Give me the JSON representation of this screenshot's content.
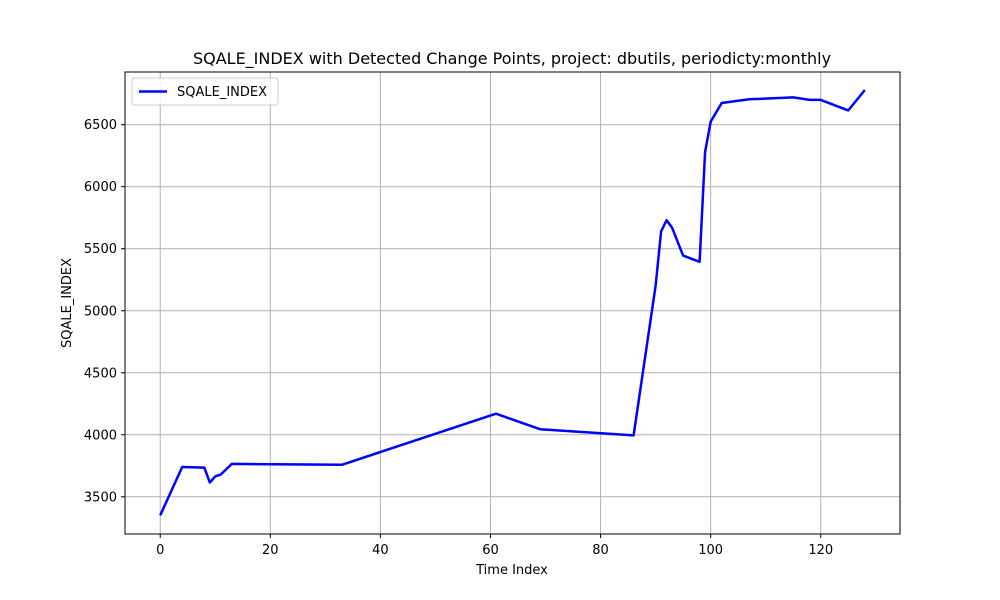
{
  "chart_data": {
    "type": "line",
    "title": "SQALE_INDEX with Detected Change Points, project: dbutils, periodicty:monthly",
    "xlabel": "Time Index",
    "ylabel": "SQALE_INDEX",
    "xlim": [
      -6.4,
      134.4
    ],
    "ylim": [
      3200,
      6925
    ],
    "xticks": [
      0,
      20,
      40,
      60,
      80,
      100,
      120
    ],
    "yticks": [
      3500,
      4000,
      4500,
      5000,
      5500,
      6000,
      6500
    ],
    "grid": true,
    "legend_position": "top-left",
    "colors": {
      "series": "#0000ff",
      "grid": "#b0b0b0",
      "axes": "#000000"
    },
    "series": [
      {
        "name": "SQALE_INDEX",
        "x": [
          0,
          4,
          8,
          9,
          10,
          11,
          13,
          33,
          61,
          69,
          86,
          90,
          91,
          92,
          93,
          95,
          98,
          99,
          100,
          102,
          107,
          115,
          118,
          120,
          125,
          128
        ],
        "y": [
          3350,
          3740,
          3735,
          3615,
          3665,
          3680,
          3765,
          3758,
          4170,
          4045,
          3995,
          5200,
          5640,
          5730,
          5670,
          5445,
          5395,
          6280,
          6525,
          6675,
          6705,
          6720,
          6700,
          6700,
          6615,
          6780
        ]
      }
    ]
  }
}
